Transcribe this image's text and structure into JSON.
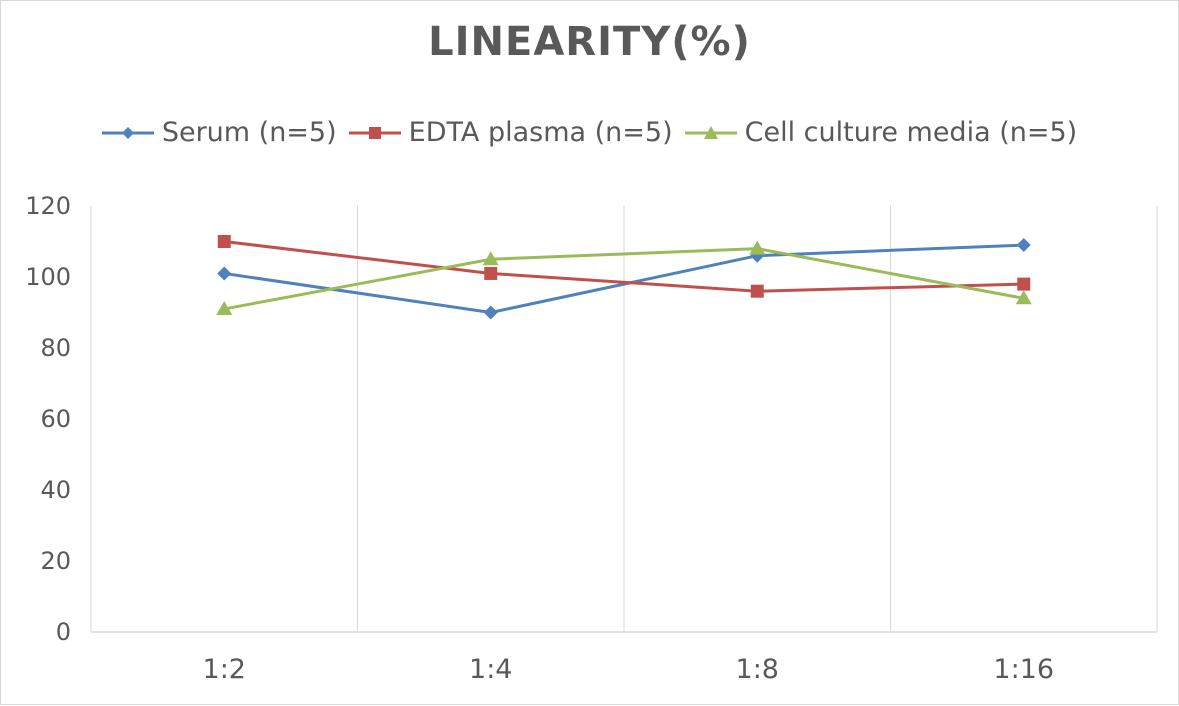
{
  "chart_data": {
    "type": "line",
    "title": "LINEARITY(%)",
    "xlabel": "",
    "ylabel": "",
    "categories": [
      "1:2",
      "1:4",
      "1:8",
      "1:16"
    ],
    "ylim": [
      0,
      120
    ],
    "yticks": [
      0,
      20,
      40,
      60,
      80,
      100,
      120
    ],
    "grid": "vertical",
    "legend_position": "top",
    "series": [
      {
        "name": "Serum (n=5)",
        "values": [
          101,
          90,
          106,
          109
        ],
        "color": "#4f81bd",
        "marker": "diamond"
      },
      {
        "name": "EDTA plasma (n=5)",
        "values": [
          110,
          101,
          96,
          98
        ],
        "color": "#c0504d",
        "marker": "square"
      },
      {
        "name": "Cell culture media (n=5)",
        "values": [
          91,
          105,
          108,
          94
        ],
        "color": "#9bbb59",
        "marker": "triangle"
      }
    ]
  }
}
